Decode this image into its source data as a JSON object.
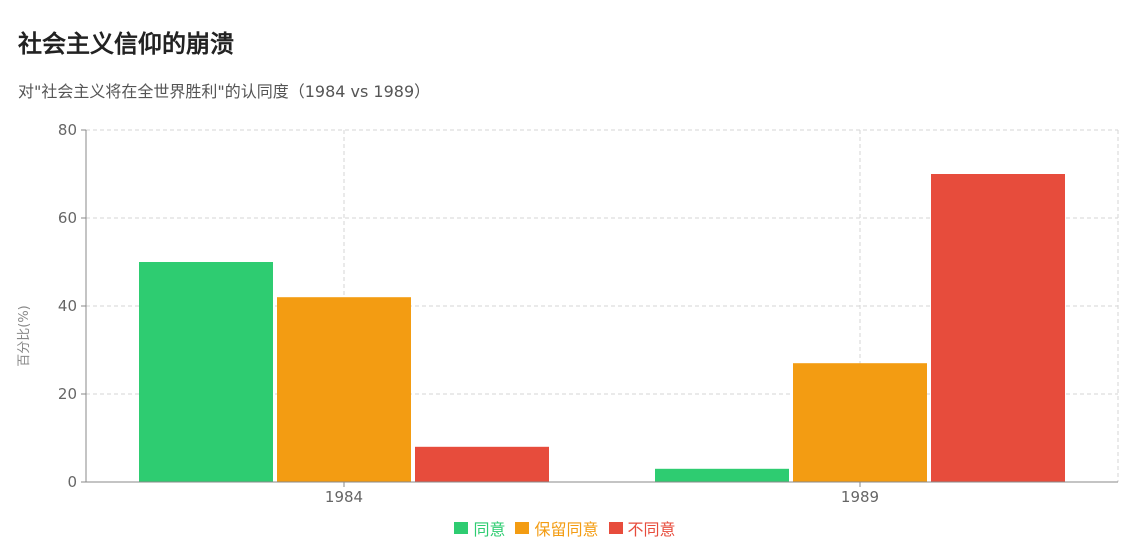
{
  "chart_data": {
    "type": "bar",
    "title": "社会主义信仰的崩溃",
    "subtitle": "对\"社会主义将在全世界胜利\"的认同度（1984 vs 1989）",
    "ylabel": "百分比(%)",
    "xlabel": "",
    "categories": [
      "1984",
      "1989"
    ],
    "ylim": [
      0,
      80
    ],
    "yticks": [
      0,
      20,
      40,
      60,
      80
    ],
    "grid": true,
    "legend_position": "bottom",
    "series": [
      {
        "name": "同意",
        "color": "#2ecc71",
        "values": [
          50,
          3
        ]
      },
      {
        "name": "保留同意",
        "color": "#f39c12",
        "values": [
          42,
          27
        ]
      },
      {
        "name": "不同意",
        "color": "#e74c3c",
        "values": [
          8,
          70
        ]
      }
    ]
  }
}
